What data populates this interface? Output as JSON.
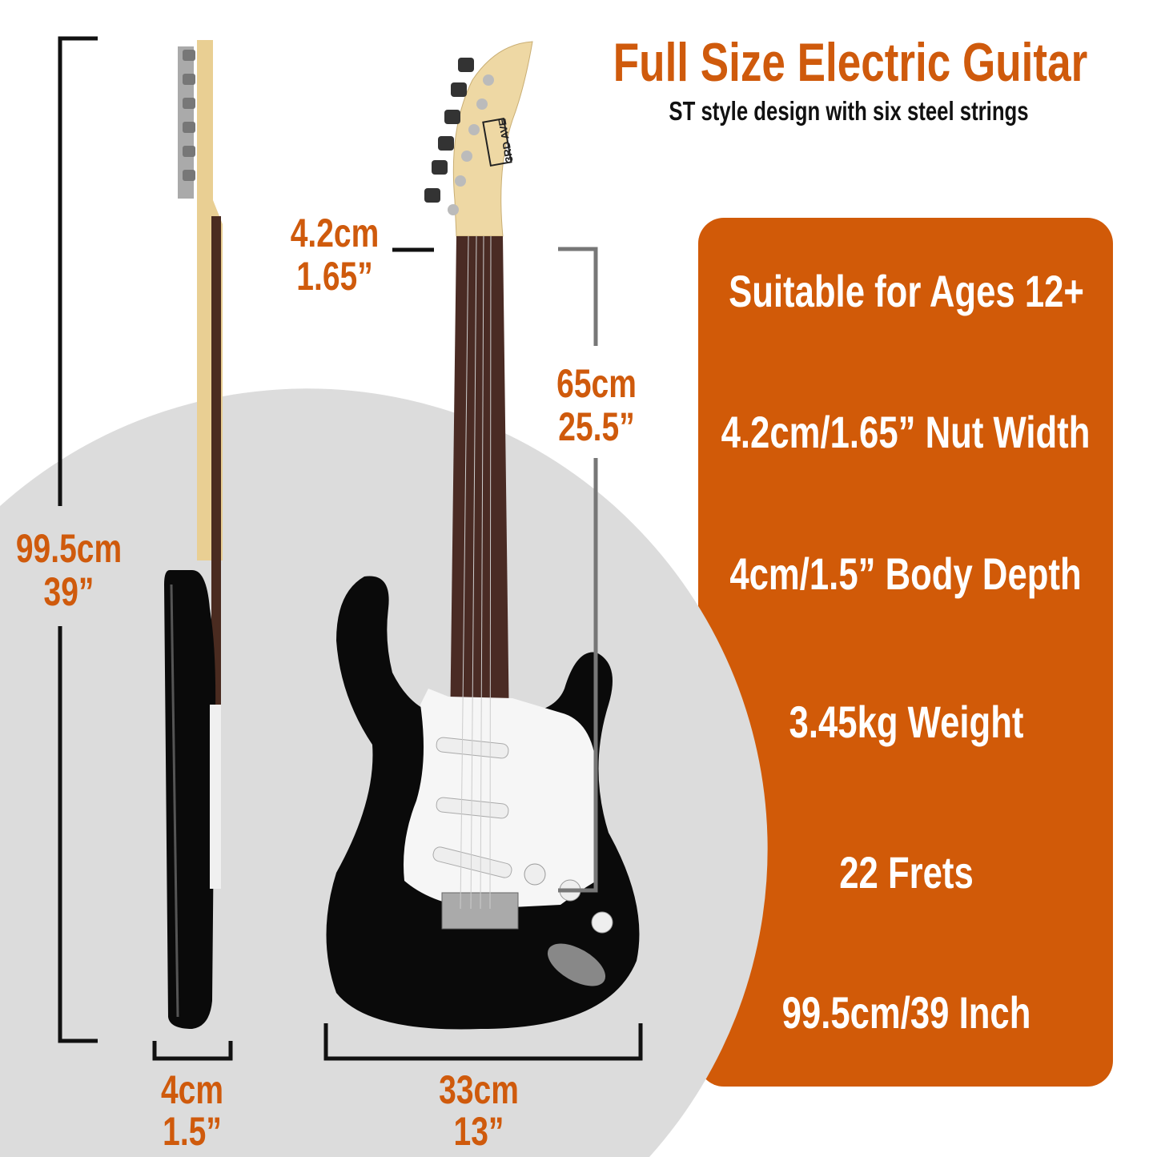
{
  "header": {
    "title": "Full Size Electric Guitar",
    "subtitle": "ST style design with six steel strings"
  },
  "features": [
    "Suitable for Ages 12+",
    "4.2cm/1.65” Nut Width",
    "4cm/1.5” Body Depth",
    "3.45kg Weight",
    "22 Frets",
    "99.5cm/39 Inch"
  ],
  "dimensions": {
    "total_length": {
      "metric": "99.5cm",
      "imperial": "39”"
    },
    "nut_width": {
      "metric": "4.2cm",
      "imperial": "1.65”"
    },
    "scale_length": {
      "metric": "65cm",
      "imperial": "25.5”"
    },
    "body_depth": {
      "metric": "4cm",
      "imperial": "1.5”"
    },
    "body_width": {
      "metric": "33cm",
      "imperial": "13”"
    }
  },
  "logo_text": "3RD AVE",
  "colors": {
    "accent": "#cf5a0c",
    "panel": "#d15a08",
    "background_circle": "#dcdcdc",
    "body": "#0a0a0a"
  }
}
